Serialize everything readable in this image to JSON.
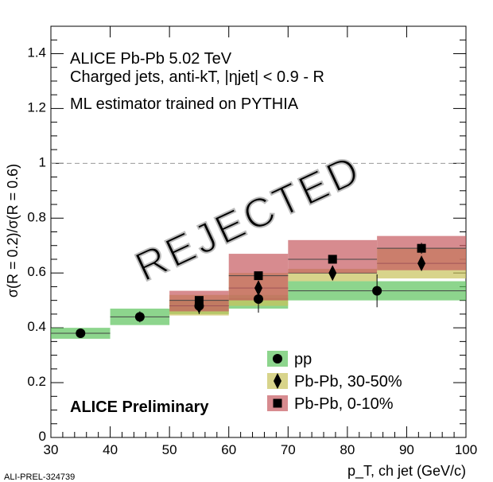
{
  "chart_data": {
    "type": "scatter",
    "xlabel": "p_T, ch jet (GeV/c)",
    "ylabel": "σ(R = 0.2)/σ(R = 0.6)",
    "xlim": [
      30,
      100
    ],
    "ylim": [
      0,
      1.5
    ],
    "xticks": [
      30,
      40,
      50,
      60,
      70,
      80,
      90,
      100
    ],
    "yticks": [
      0,
      0.2,
      0.4,
      0.6,
      0.8,
      1,
      1.2,
      1.4
    ],
    "reference_line": 1,
    "annotations": [
      "ALICE Pb-Pb 5.02 TeV",
      "Charged jets, anti-kT, |ηjet| < 0.9 - R",
      "ML estimator trained on PYTHIA",
      "ALICE Preliminary"
    ],
    "watermark": "REJECTED",
    "footer": "ALI-PREL-324739",
    "legend_position": "bottom-right",
    "series": [
      {
        "name": "pp",
        "marker": "circle",
        "color": "#5cc35c",
        "bins": [
          [
            30,
            40
          ],
          [
            40,
            50
          ],
          [
            50,
            60
          ],
          [
            60,
            70
          ],
          [
            70,
            100
          ]
        ],
        "x": [
          35,
          45,
          55,
          65,
          85
        ],
        "y": [
          0.38,
          0.44,
          0.48,
          0.505,
          0.535
        ],
        "stat_err": [
          0.015,
          0.02,
          0.03,
          0.05,
          0.06
        ],
        "sys": [
          [
            0.36,
            0.4
          ],
          [
            0.41,
            0.47
          ],
          [
            0.45,
            0.5
          ],
          [
            0.47,
            0.52
          ],
          [
            0.5,
            0.57
          ]
        ]
      },
      {
        "name": "Pb-Pb, 30-50%",
        "marker": "diamond",
        "color": "#c8c25a",
        "bins": [
          [
            50,
            60
          ],
          [
            60,
            70
          ],
          [
            70,
            85
          ],
          [
            85,
            100
          ]
        ],
        "x": [
          55,
          65,
          77.5,
          92.5
        ],
        "y": [
          0.48,
          0.545,
          0.6,
          0.635
        ],
        "stat_err": [
          0.02,
          0.02,
          0.02,
          0.02
        ],
        "sys": [
          [
            0.445,
            0.52
          ],
          [
            0.48,
            0.6
          ],
          [
            0.57,
            0.615
          ],
          [
            0.58,
            0.69
          ]
        ]
      },
      {
        "name": "Pb-Pb, 0-10%",
        "marker": "square",
        "color": "#c65a5f",
        "bins": [
          [
            50,
            60
          ],
          [
            60,
            70
          ],
          [
            70,
            85
          ],
          [
            85,
            100
          ]
        ],
        "x": [
          55,
          65,
          77.5,
          92.5
        ],
        "y": [
          0.5,
          0.59,
          0.65,
          0.69
        ],
        "stat_err": [
          0.015,
          0.015,
          0.015,
          0.02
        ],
        "sys": [
          [
            0.46,
            0.535
          ],
          [
            0.5,
            0.67
          ],
          [
            0.6,
            0.72
          ],
          [
            0.61,
            0.735
          ]
        ]
      }
    ]
  }
}
